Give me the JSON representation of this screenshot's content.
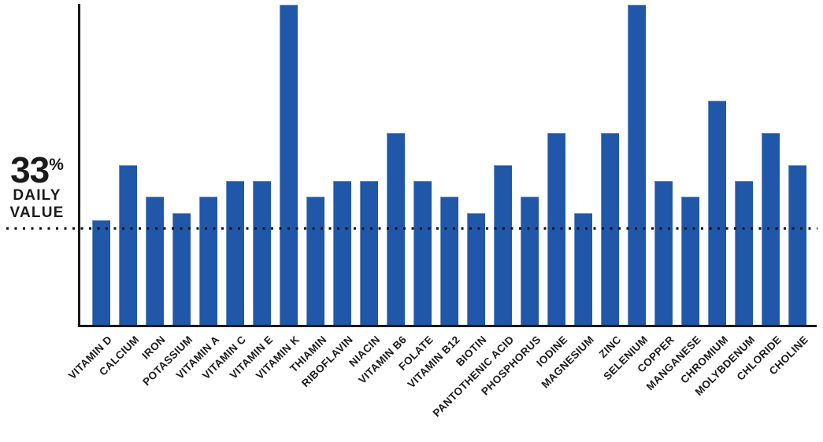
{
  "chart_data": {
    "type": "bar",
    "title": "",
    "xlabel": "",
    "ylabel": "% Daily Value",
    "ylim": [
      0,
      112
    ],
    "grid": false,
    "legend_position": "none",
    "bar_color": "#2057a8",
    "axis_color": "#1a1a1a",
    "dotted_line_color": "#111111",
    "reference_line": {
      "value": 33,
      "label_value": "33",
      "percent_sign": "%",
      "label_line1": "DAILY",
      "label_line2": "VALUE"
    },
    "categories": [
      "VITAMIN D",
      "CALCIUM",
      "IRON",
      "POTASSIUM",
      "VITAMIN A",
      "VITAMIN C",
      "VITAMIN E",
      "VITAMIN K",
      "THIAMIN",
      "RIBOFLAVIN",
      "NIACIN",
      "VITAMIN B6",
      "FOLATE",
      "VITAMIN B12",
      "BIOTIN",
      "PANTOTHENIC ACID",
      "PHOSPHORUS",
      "IODINE",
      "MAGNESIUM",
      "ZINC",
      "SELENIUM",
      "COPPER",
      "MANGANESE",
      "CHROMIUM",
      "MOLYBDENUM",
      "CHLORIDE",
      "CHOLINE"
    ],
    "values": [
      36,
      55,
      44,
      38.5,
      44,
      49.5,
      49.5,
      110,
      44,
      49.5,
      49.5,
      66,
      49.5,
      44,
      38.5,
      55,
      44,
      66,
      38.5,
      66,
      110,
      49.5,
      44,
      77,
      49.5,
      66,
      55
    ]
  }
}
